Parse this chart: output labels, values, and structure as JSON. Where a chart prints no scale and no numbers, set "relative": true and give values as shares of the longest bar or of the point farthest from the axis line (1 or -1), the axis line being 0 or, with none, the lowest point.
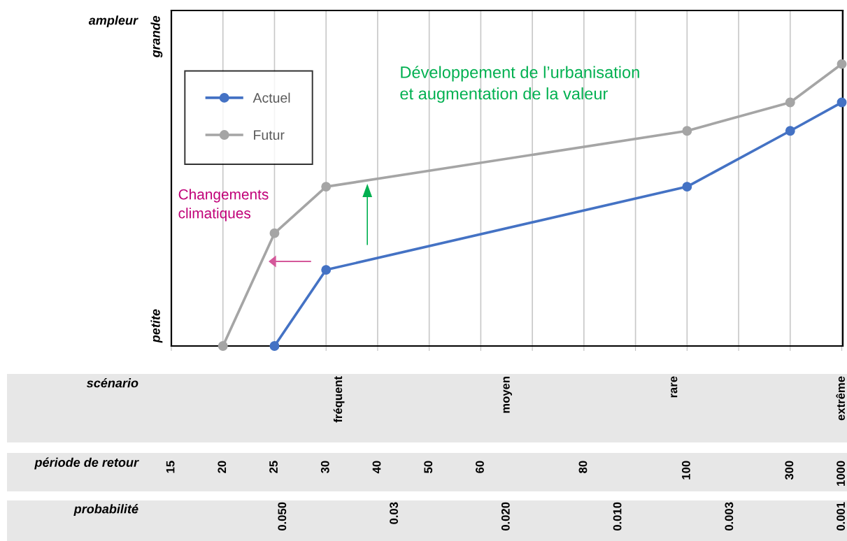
{
  "chart_data": {
    "type": "line",
    "relative": true,
    "ylabel": "ampleur",
    "xlabel": "période de retour",
    "categories": [
      "15",
      "20",
      "25",
      "30",
      "40",
      "50",
      "60",
      null,
      "80",
      null,
      "100",
      null,
      "300",
      "1000"
    ],
    "series": [
      {
        "name": "Actuel",
        "color": "#4472c4",
        "values": [
          null,
          null,
          0,
          0.27,
          null,
          null,
          null,
          null,
          null,
          null,
          0.565,
          null,
          0.763,
          0.864
        ]
      },
      {
        "name": "Futur",
        "color": "#a5a5a5",
        "values": [
          null,
          0,
          0.4,
          0.565,
          null,
          null,
          null,
          null,
          null,
          null,
          0.763,
          null,
          0.864,
          1
        ]
      }
    ],
    "marker": "circle",
    "line_style": "solid",
    "grid": "x",
    "legend": "top left",
    "annotations": [
      "grande",
      "petite",
      "Développement de l’urbanisation\net augmentation de la valeur",
      "Changements\nclimatiques",
      "scénario",
      "fréquent",
      "moyen",
      "rare",
      "extrême",
      "probabilité",
      "0.050",
      "0.03",
      "0.020",
      "0.010",
      "0.003",
      "0.001"
    ]
  }
}
